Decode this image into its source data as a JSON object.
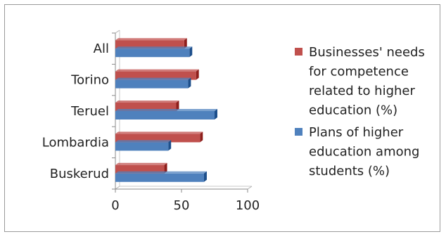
{
  "chart_data": {
    "type": "bar",
    "orientation": "horizontal",
    "categories": [
      "All",
      "Torino",
      "Teruel",
      "Lombardia",
      "Buskerud"
    ],
    "series": [
      {
        "name": "Businesses' needs for competence related to higher education (%)",
        "legend_lines": [
          "Businesses' needs",
          "for competence",
          "related to higher",
          "education (%)"
        ],
        "color": "#c0504d",
        "values": [
          52,
          61,
          46,
          64,
          37
        ]
      },
      {
        "name": "Plans of higher education among students (%)",
        "legend_lines": [
          "Plans of higher",
          "education among",
          "students (%)"
        ],
        "color": "#4f81bd",
        "values": [
          56,
          55,
          75,
          40,
          67
        ]
      }
    ],
    "xlim": [
      0,
      100
    ],
    "xticks": [
      "0",
      "50",
      "100"
    ],
    "grid": false,
    "legend_position": "right"
  }
}
